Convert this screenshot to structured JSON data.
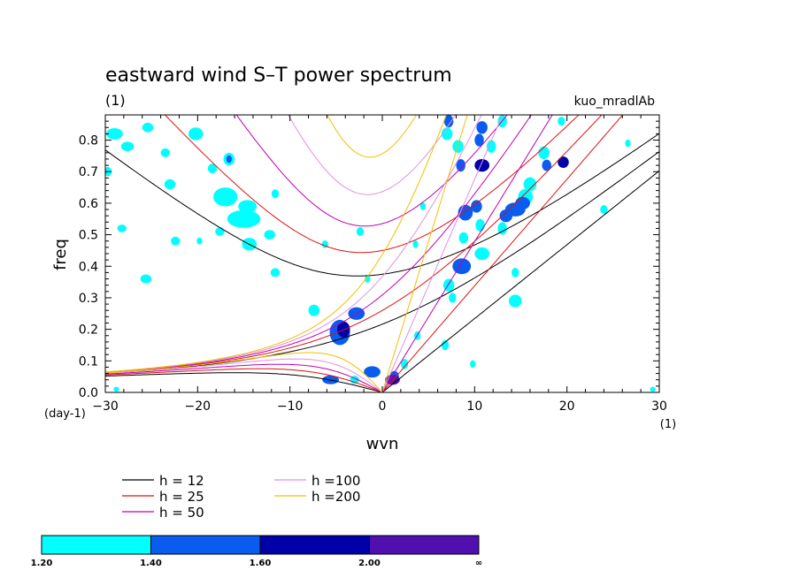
{
  "chart_data": {
    "type": "heatmap",
    "title": "eastward wind S–T power spectrum",
    "subtitle_left": "(1)",
    "subtitle_right": "kuo_mradlAb",
    "xlabel": "wvn",
    "ylabel": "freq",
    "x_unit": "(1)",
    "y_unit": "(day-1)",
    "xlim": [
      -30,
      30
    ],
    "ylim": [
      0.0,
      0.88
    ],
    "x_ticks": [
      -30,
      -20,
      -10,
      0,
      10,
      20,
      30
    ],
    "y_ticks": [
      0.0,
      0.1,
      0.2,
      0.3,
      0.4,
      0.5,
      0.6,
      0.7,
      0.8
    ],
    "dispersion_curves": [
      {
        "name": "h = 12",
        "h": 12,
        "color": "#000000"
      },
      {
        "name": "h = 25",
        "h": 25,
        "color": "#e01010"
      },
      {
        "name": "h = 50",
        "h": 50,
        "color": "#c000b0"
      },
      {
        "name": "h =100",
        "h": 100,
        "color": "#e090e0"
      },
      {
        "name": "h =200",
        "h": 200,
        "color": "#f0c000"
      }
    ],
    "shading_levels": {
      "labels": [
        "1.20",
        "1.40",
        "1.60",
        "2.00",
        "∞"
      ],
      "colors": [
        "#00ffff",
        "#0a5cf0",
        "#0000a8",
        "#5010b0"
      ]
    },
    "blobs": [
      {
        "x": 7.2,
        "y": 0.86,
        "rx": 0.5,
        "ry": 0.02,
        "level": 1
      },
      {
        "x": 7.0,
        "y": 0.82,
        "rx": 0.6,
        "ry": 0.02,
        "level": 0
      },
      {
        "x": 8.2,
        "y": 0.78,
        "rx": 0.6,
        "ry": 0.02,
        "level": 0
      },
      {
        "x": 8.5,
        "y": 0.72,
        "rx": 0.5,
        "ry": 0.02,
        "level": 1
      },
      {
        "x": 10.8,
        "y": 0.84,
        "rx": 0.6,
        "ry": 0.02,
        "level": 1
      },
      {
        "x": 10.5,
        "y": 0.8,
        "rx": 0.5,
        "ry": 0.02,
        "level": 1
      },
      {
        "x": 11.8,
        "y": 0.78,
        "rx": 0.5,
        "ry": 0.02,
        "level": 0
      },
      {
        "x": 10.8,
        "y": 0.72,
        "rx": 0.8,
        "ry": 0.02,
        "level": 2
      },
      {
        "x": 13.0,
        "y": 0.86,
        "rx": 0.5,
        "ry": 0.02,
        "level": 0
      },
      {
        "x": 17.5,
        "y": 0.76,
        "rx": 0.6,
        "ry": 0.02,
        "level": 0
      },
      {
        "x": 19.6,
        "y": 0.73,
        "rx": 0.6,
        "ry": 0.018,
        "level": 2
      },
      {
        "x": 17.8,
        "y": 0.72,
        "rx": 0.5,
        "ry": 0.018,
        "level": 1
      },
      {
        "x": 16.0,
        "y": 0.66,
        "rx": 0.7,
        "ry": 0.022,
        "level": 0
      },
      {
        "x": 15.5,
        "y": 0.62,
        "rx": 0.8,
        "ry": 0.025,
        "level": 0
      },
      {
        "x": 14.4,
        "y": 0.58,
        "rx": 1.1,
        "ry": 0.022,
        "level": 1
      },
      {
        "x": 15.2,
        "y": 0.6,
        "rx": 0.8,
        "ry": 0.02,
        "level": 1
      },
      {
        "x": 13.4,
        "y": 0.56,
        "rx": 0.7,
        "ry": 0.02,
        "level": 1
      },
      {
        "x": 13.0,
        "y": 0.52,
        "rx": 0.5,
        "ry": 0.02,
        "level": 0
      },
      {
        "x": 9.0,
        "y": 0.57,
        "rx": 0.8,
        "ry": 0.025,
        "level": 1
      },
      {
        "x": 10.2,
        "y": 0.59,
        "rx": 0.6,
        "ry": 0.02,
        "level": 1
      },
      {
        "x": 10.6,
        "y": 0.53,
        "rx": 0.5,
        "ry": 0.02,
        "level": 0
      },
      {
        "x": 8.8,
        "y": 0.49,
        "rx": 0.5,
        "ry": 0.018,
        "level": 0
      },
      {
        "x": 10.8,
        "y": 0.44,
        "rx": 0.8,
        "ry": 0.02,
        "level": 0
      },
      {
        "x": 8.6,
        "y": 0.4,
        "rx": 1.0,
        "ry": 0.025,
        "level": 1
      },
      {
        "x": 7.2,
        "y": 0.34,
        "rx": 0.6,
        "ry": 0.02,
        "level": 0
      },
      {
        "x": 7.6,
        "y": 0.3,
        "rx": 0.4,
        "ry": 0.016,
        "level": 0
      },
      {
        "x": 14.4,
        "y": 0.29,
        "rx": 0.7,
        "ry": 0.02,
        "level": 0
      },
      {
        "x": 14.4,
        "y": 0.38,
        "rx": 0.4,
        "ry": 0.015,
        "level": 0
      },
      {
        "x": 6.8,
        "y": 0.15,
        "rx": 0.4,
        "ry": 0.016,
        "level": 0
      },
      {
        "x": 3.8,
        "y": 0.18,
        "rx": 0.35,
        "ry": 0.014,
        "level": 0
      },
      {
        "x": 2.4,
        "y": 0.09,
        "rx": 0.4,
        "ry": 0.016,
        "level": 0
      },
      {
        "x": 1.3,
        "y": 0.05,
        "rx": 0.5,
        "ry": 0.018,
        "level": 1
      },
      {
        "x": 1.1,
        "y": 0.04,
        "rx": 0.8,
        "ry": 0.016,
        "level": 3
      },
      {
        "x": -1.1,
        "y": 0.065,
        "rx": 0.9,
        "ry": 0.018,
        "level": 1
      },
      {
        "x": -5.6,
        "y": 0.04,
        "rx": 0.9,
        "ry": 0.014,
        "level": 1
      },
      {
        "x": -3.0,
        "y": 0.04,
        "rx": 0.5,
        "ry": 0.013,
        "level": 0
      },
      {
        "x": -4.6,
        "y": 0.19,
        "rx": 1.1,
        "ry": 0.04,
        "level": 1
      },
      {
        "x": -4.2,
        "y": 0.2,
        "rx": 0.7,
        "ry": 0.025,
        "level": 2
      },
      {
        "x": -2.8,
        "y": 0.25,
        "rx": 0.9,
        "ry": 0.02,
        "level": 1
      },
      {
        "x": -7.4,
        "y": 0.26,
        "rx": 0.6,
        "ry": 0.018,
        "level": 0
      },
      {
        "x": -29.0,
        "y": 0.82,
        "rx": 0.9,
        "ry": 0.018,
        "level": 0
      },
      {
        "x": -27.6,
        "y": 0.78,
        "rx": 0.7,
        "ry": 0.015,
        "level": 0
      },
      {
        "x": -29.7,
        "y": 0.7,
        "rx": 0.4,
        "ry": 0.015,
        "level": 0
      },
      {
        "x": -25.4,
        "y": 0.84,
        "rx": 0.6,
        "ry": 0.015,
        "level": 0
      },
      {
        "x": -20.2,
        "y": 0.82,
        "rx": 0.8,
        "ry": 0.02,
        "level": 0
      },
      {
        "x": -23.5,
        "y": 0.76,
        "rx": 0.5,
        "ry": 0.014,
        "level": 0
      },
      {
        "x": -16.6,
        "y": 0.74,
        "rx": 0.6,
        "ry": 0.02,
        "level": 0
      },
      {
        "x": -16.6,
        "y": 0.74,
        "rx": 0.3,
        "ry": 0.012,
        "level": 1
      },
      {
        "x": -18.4,
        "y": 0.71,
        "rx": 0.5,
        "ry": 0.015,
        "level": 0
      },
      {
        "x": -23.0,
        "y": 0.66,
        "rx": 0.6,
        "ry": 0.016,
        "level": 0
      },
      {
        "x": -17.0,
        "y": 0.62,
        "rx": 1.3,
        "ry": 0.03,
        "level": 0
      },
      {
        "x": -15.0,
        "y": 0.55,
        "rx": 1.8,
        "ry": 0.028,
        "level": 0
      },
      {
        "x": -14.6,
        "y": 0.59,
        "rx": 1.0,
        "ry": 0.02,
        "level": 0
      },
      {
        "x": -11.6,
        "y": 0.63,
        "rx": 0.4,
        "ry": 0.014,
        "level": 0
      },
      {
        "x": -17.6,
        "y": 0.51,
        "rx": 0.5,
        "ry": 0.014,
        "level": 0
      },
      {
        "x": -14.4,
        "y": 0.47,
        "rx": 0.8,
        "ry": 0.02,
        "level": 0
      },
      {
        "x": -12.2,
        "y": 0.5,
        "rx": 0.6,
        "ry": 0.015,
        "level": 0
      },
      {
        "x": -11.6,
        "y": 0.38,
        "rx": 0.5,
        "ry": 0.014,
        "level": 0
      },
      {
        "x": -25.6,
        "y": 0.36,
        "rx": 0.6,
        "ry": 0.014,
        "level": 0
      },
      {
        "x": -28.2,
        "y": 0.52,
        "rx": 0.5,
        "ry": 0.012,
        "level": 0
      },
      {
        "x": -22.4,
        "y": 0.48,
        "rx": 0.5,
        "ry": 0.014,
        "level": 0
      },
      {
        "x": -2.4,
        "y": 0.51,
        "rx": 0.4,
        "ry": 0.014,
        "level": 0
      },
      {
        "x": -1.6,
        "y": 0.36,
        "rx": 0.3,
        "ry": 0.012,
        "level": 0
      },
      {
        "x": 3.6,
        "y": 0.47,
        "rx": 0.3,
        "ry": 0.012,
        "level": 0
      },
      {
        "x": 26.6,
        "y": 0.79,
        "rx": 0.3,
        "ry": 0.012,
        "level": 0
      },
      {
        "x": 24.0,
        "y": 0.58,
        "rx": 0.4,
        "ry": 0.014,
        "level": 0
      },
      {
        "x": 19.4,
        "y": 0.86,
        "rx": 0.4,
        "ry": 0.014,
        "level": 0
      },
      {
        "x": 9.8,
        "y": 0.09,
        "rx": 0.3,
        "ry": 0.012,
        "level": 0
      },
      {
        "x": 4.4,
        "y": 0.59,
        "rx": 0.3,
        "ry": 0.012,
        "level": 0
      },
      {
        "x": -6.2,
        "y": 0.47,
        "rx": 0.35,
        "ry": 0.012,
        "level": 0
      },
      {
        "x": -19.8,
        "y": 0.48,
        "rx": 0.3,
        "ry": 0.011,
        "level": 0
      },
      {
        "x": -28.8,
        "y": 0.01,
        "rx": 0.3,
        "ry": 0.008,
        "level": 0
      },
      {
        "x": 29.3,
        "y": 0.01,
        "rx": 0.3,
        "ry": 0.008,
        "level": 0
      }
    ]
  }
}
